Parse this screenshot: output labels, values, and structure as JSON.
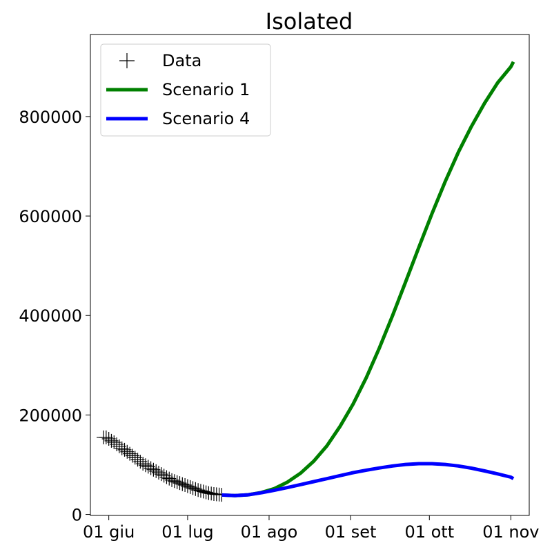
{
  "chart_data": {
    "type": "line",
    "title": "Isolated",
    "xlabel": "",
    "ylabel": "",
    "x_ticks": [
      {
        "date": "2020-06-01",
        "label": "01 giu"
      },
      {
        "date": "2020-07-01",
        "label": "01 lug"
      },
      {
        "date": "2020-08-01",
        "label": "01 ago"
      },
      {
        "date": "2020-09-01",
        "label": "01 set"
      },
      {
        "date": "2020-10-01",
        "label": "01 ott"
      },
      {
        "date": "2020-11-01",
        "label": "01 nov"
      }
    ],
    "y_ticks": [
      0,
      200000,
      400000,
      600000,
      800000
    ],
    "xlim": [
      "2020-05-25",
      "2020-11-08"
    ],
    "ylim": [
      -2000,
      965000
    ],
    "grid": false,
    "legend_position": "top-left",
    "series": [
      {
        "name": "Data",
        "type": "scatter",
        "marker": "+",
        "color": "#000000",
        "points": [
          [
            "2020-05-30",
            155000
          ],
          [
            "2020-05-31",
            155000
          ],
          [
            "2020-06-01",
            152000
          ],
          [
            "2020-06-02",
            148000
          ],
          [
            "2020-06-03",
            145000
          ],
          [
            "2020-06-04",
            141000
          ],
          [
            "2020-06-05",
            137000
          ],
          [
            "2020-06-06",
            133000
          ],
          [
            "2020-06-07",
            130000
          ],
          [
            "2020-06-08",
            126000
          ],
          [
            "2020-06-09",
            122000
          ],
          [
            "2020-06-10",
            118000
          ],
          [
            "2020-06-11",
            114000
          ],
          [
            "2020-06-12",
            110000
          ],
          [
            "2020-06-13",
            106000
          ],
          [
            "2020-06-14",
            102000
          ],
          [
            "2020-06-15",
            99000
          ],
          [
            "2020-06-16",
            96000
          ],
          [
            "2020-06-17",
            93000
          ],
          [
            "2020-06-18",
            90000
          ],
          [
            "2020-06-19",
            87000
          ],
          [
            "2020-06-20",
            84000
          ],
          [
            "2020-06-21",
            81000
          ],
          [
            "2020-06-22",
            78000
          ],
          [
            "2020-06-23",
            75000
          ],
          [
            "2020-06-24",
            72000
          ],
          [
            "2020-06-25",
            69000
          ],
          [
            "2020-06-26",
            67000
          ],
          [
            "2020-06-27",
            65000
          ],
          [
            "2020-06-28",
            63000
          ],
          [
            "2020-06-29",
            61000
          ],
          [
            "2020-06-30",
            59000
          ],
          [
            "2020-07-01",
            57000
          ],
          [
            "2020-07-02",
            55000
          ],
          [
            "2020-07-03",
            53000
          ],
          [
            "2020-07-04",
            51000
          ],
          [
            "2020-07-05",
            49000
          ],
          [
            "2020-07-06",
            47500
          ],
          [
            "2020-07-07",
            46000
          ],
          [
            "2020-07-08",
            44500
          ],
          [
            "2020-07-09",
            43000
          ],
          [
            "2020-07-10",
            42000
          ],
          [
            "2020-07-11",
            41000
          ],
          [
            "2020-07-12",
            40500
          ],
          [
            "2020-07-13",
            40000
          ],
          [
            "2020-07-14",
            39500
          ]
        ]
      },
      {
        "name": "Scenario 1",
        "type": "line",
        "color": "#008000",
        "points": [
          [
            "2020-07-14",
            39000
          ],
          [
            "2020-07-19",
            38000
          ],
          [
            "2020-07-24",
            39500
          ],
          [
            "2020-07-29",
            44000
          ],
          [
            "2020-08-03",
            52000
          ],
          [
            "2020-08-08",
            65000
          ],
          [
            "2020-08-13",
            83000
          ],
          [
            "2020-08-18",
            107000
          ],
          [
            "2020-08-23",
            138000
          ],
          [
            "2020-08-28",
            177000
          ],
          [
            "2020-09-02",
            222000
          ],
          [
            "2020-09-07",
            275000
          ],
          [
            "2020-09-12",
            335000
          ],
          [
            "2020-09-17",
            400000
          ],
          [
            "2020-09-22",
            468000
          ],
          [
            "2020-09-27",
            537000
          ],
          [
            "2020-10-02",
            605000
          ],
          [
            "2020-10-07",
            669000
          ],
          [
            "2020-10-12",
            728000
          ],
          [
            "2020-10-17",
            780000
          ],
          [
            "2020-10-22",
            827000
          ],
          [
            "2020-10-27",
            868000
          ],
          [
            "2020-11-01",
            900000
          ],
          [
            "2020-11-02",
            910000
          ]
        ]
      },
      {
        "name": "Scenario 4",
        "type": "line",
        "color": "#0000ff",
        "points": [
          [
            "2020-07-14",
            39000
          ],
          [
            "2020-07-19",
            38000
          ],
          [
            "2020-07-24",
            39500
          ],
          [
            "2020-07-29",
            43500
          ],
          [
            "2020-08-03",
            48500
          ],
          [
            "2020-08-08",
            54000
          ],
          [
            "2020-08-13",
            60000
          ],
          [
            "2020-08-18",
            66000
          ],
          [
            "2020-08-23",
            72000
          ],
          [
            "2020-08-28",
            78000
          ],
          [
            "2020-09-02",
            84000
          ],
          [
            "2020-09-07",
            89000
          ],
          [
            "2020-09-12",
            93500
          ],
          [
            "2020-09-17",
            97500
          ],
          [
            "2020-09-22",
            100500
          ],
          [
            "2020-09-27",
            102000
          ],
          [
            "2020-10-02",
            102000
          ],
          [
            "2020-10-07",
            100500
          ],
          [
            "2020-10-12",
            97500
          ],
          [
            "2020-10-17",
            93000
          ],
          [
            "2020-10-22",
            87500
          ],
          [
            "2020-10-27",
            81500
          ],
          [
            "2020-11-01",
            75000
          ],
          [
            "2020-11-02",
            72000
          ]
        ]
      }
    ]
  }
}
